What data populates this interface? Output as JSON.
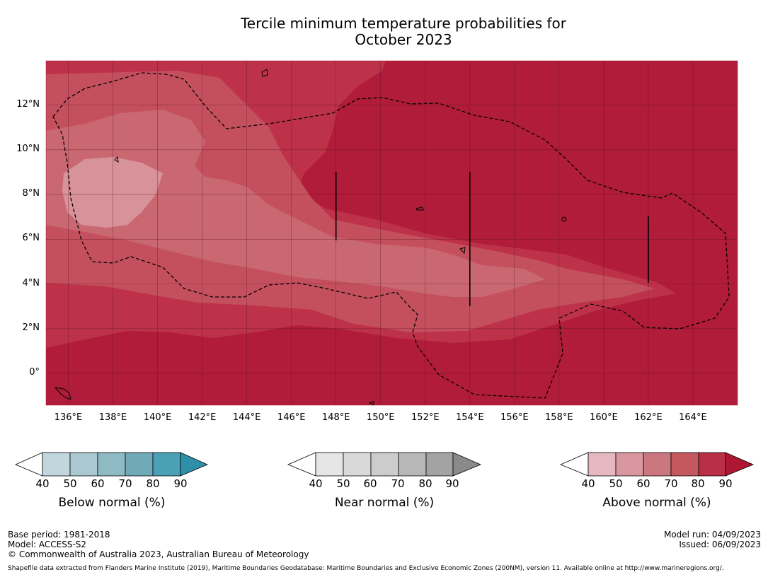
{
  "title": {
    "line1": "Tercile minimum temperature probabilities for",
    "line2": "October 2023"
  },
  "map": {
    "lat_labels": [
      "12°N",
      "10°N",
      "8°N",
      "6°N",
      "4°N",
      "2°N",
      "0°"
    ],
    "lon_labels": [
      "136°E",
      "138°E",
      "140°E",
      "142°E",
      "144°E",
      "146°E",
      "148°E",
      "150°E",
      "152°E",
      "154°E",
      "156°E",
      "158°E",
      "160°E",
      "162°E",
      "164°E"
    ],
    "lon_range": [
      135,
      166
    ],
    "lat_range": [
      -1.5,
      13.9
    ],
    "colors": {
      "above_90": "#b01c3a",
      "above_80": "#bd3249",
      "above_70": "#c4505e",
      "above_60": "#ca6872",
      "above_50": "#d8929a",
      "grid": "#5a1020"
    }
  },
  "colorbars": {
    "ticks": [
      "40",
      "50",
      "60",
      "70",
      "80",
      "90"
    ],
    "below": {
      "label": "Below normal (%)",
      "colors": [
        "#c2d7dd",
        "#a9c8cf",
        "#8ebac4",
        "#70aab8",
        "#4aa0b4",
        "#2e8fa8"
      ]
    },
    "near": {
      "label": "Near normal (%)",
      "colors": [
        "#e6e6e6",
        "#d9d9d9",
        "#cccccc",
        "#b7b7b7",
        "#a3a3a3",
        "#8a8a8a"
      ]
    },
    "above": {
      "label": "Above normal (%)",
      "colors": [
        "#e5b8c0",
        "#d8979f",
        "#cb7780",
        "#c3585f",
        "#b92f46",
        "#ad1732"
      ]
    }
  },
  "footer": {
    "base_period": "Base period: 1981-2018",
    "model": "Model: ACCESS-S2",
    "copyright": "© Commonwealth of Australia 2023, Australian Bureau of Meteorology",
    "model_run": "Model run: 04/09/2023",
    "issued": "Issued: 06/09/2023",
    "shapefile": "Shapefile data extracted from Flanders Marine Institute (2019), Maritime Boundaries Geodatabase: Maritime Boundaries and Exclusive Economic Zones (200NM), version 11. Available online at http://www.marineregions.org/."
  }
}
